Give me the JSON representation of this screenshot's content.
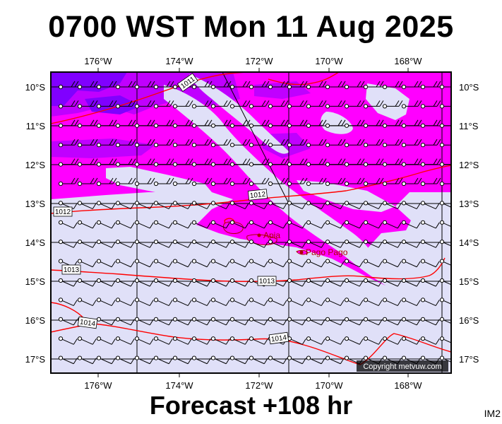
{
  "title": "0700 WST Mon 11 Aug 2025",
  "forecast": "Forecast +108 hr",
  "corner_code": "IM2",
  "copyright": "Copyright metvuw.com",
  "lon_labels": [
    "176°W",
    "174°W",
    "172°W",
    "170°W",
    "168°W"
  ],
  "lat_labels": [
    "10°S",
    "11°S",
    "12°S",
    "13°S",
    "14°S",
    "15°S",
    "16°S",
    "17°S"
  ],
  "places": [
    {
      "name": "Apia"
    },
    {
      "name": "Pago Pago"
    }
  ],
  "isobar_labels": [
    "1011",
    "1012",
    "1012",
    "1013",
    "1013",
    "1014",
    "1014"
  ],
  "colors": {
    "light_fill": "#e0e0f8",
    "magenta": "#ff00ff",
    "violet": "#c000ff",
    "purple": "#8000ff",
    "isobar": "#ff0000",
    "place": "#b00000"
  }
}
